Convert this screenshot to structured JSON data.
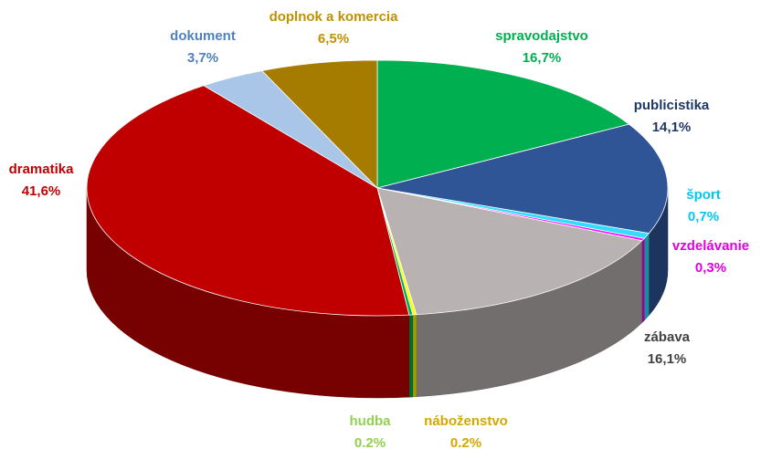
{
  "chart_data": {
    "type": "pie",
    "categories": [
      "spravodajstvo",
      "publicistika",
      "šport",
      "vzdelávanie",
      "zábava",
      "náboženstvo",
      "hudba",
      "dramatika",
      "dokument",
      "doplnok a komercia"
    ],
    "values": [
      16.7,
      14.1,
      0.7,
      0.3,
      16.1,
      0.2,
      0.2,
      41.6,
      3.7,
      6.5
    ],
    "value_labels": [
      "16,7%",
      "14,1%",
      "0,7%",
      "0,3%",
      "16,1%",
      "0.2%",
      "0.2%",
      "41,6%",
      "3,7%",
      "6,5%"
    ],
    "colors": [
      "#00b050",
      "#2f5597",
      "#33ddff",
      "#ff00ff",
      "#b8b2b2",
      "#ffff00",
      "#00b050",
      "#c00000",
      "#a9c6e8",
      "#a67c00"
    ],
    "label_colors": [
      "#00b050",
      "#203864",
      "#00c8f0",
      "#e000e0",
      "#404040",
      "#d4a800",
      "#92d050",
      "#c00000",
      "#4f81bd",
      "#bf9000"
    ]
  }
}
